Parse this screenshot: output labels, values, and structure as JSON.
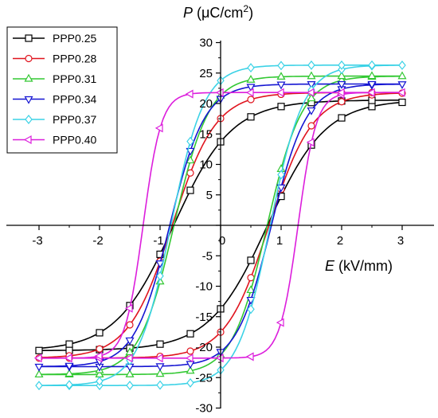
{
  "chart_data": {
    "type": "line",
    "xlabel": {
      "symbol": "E",
      "unit": " (kV/mm)"
    },
    "ylabel": {
      "symbol": "P",
      "unit": " (μC/cm",
      "sup": "2",
      "close": ")"
    },
    "xlim": [
      -3.7,
      3.6
    ],
    "ylim": [
      -30,
      30
    ],
    "xticks": [
      -3,
      -2,
      -1,
      0,
      1,
      2,
      3
    ],
    "yticks": [
      -30,
      -25,
      -20,
      -15,
      -10,
      -5,
      0,
      5,
      10,
      15,
      20,
      25,
      30
    ],
    "grid": false,
    "legend_position": "top-left",
    "series": [
      {
        "name": "PPP0.25",
        "color": "#000000",
        "marker": "square",
        "Ps": 20.3,
        "Ec": 0.78,
        "w": 0.95,
        "offset": 0.3,
        "marker_x": [
          -3,
          -2.5,
          -2,
          -1.5,
          -1,
          -0.5,
          0,
          0.5,
          1,
          1.5,
          2,
          2.5,
          3
        ]
      },
      {
        "name": "PPP0.28",
        "color": "#e0141e",
        "marker": "circle",
        "Ps": 21.8,
        "Ec": 0.8,
        "w": 0.72,
        "offset": 0,
        "marker_x": [
          -3,
          -2.5,
          -2,
          -1.5,
          -1,
          -0.5,
          0,
          0.5,
          1,
          1.5,
          2,
          2.5,
          3
        ]
      },
      {
        "name": "PPP0.31",
        "color": "#32c832",
        "marker": "triangle-up",
        "Ps": 24.5,
        "Ec": 0.77,
        "w": 0.58,
        "offset": 0,
        "marker_x": [
          -3,
          -2.5,
          -2,
          -1.5,
          -1,
          -0.5,
          0,
          0.5,
          1,
          1.5,
          2,
          2.5,
          3
        ]
      },
      {
        "name": "PPP0.34",
        "color": "#1414d2",
        "marker": "triangle-down",
        "Ps": 23.2,
        "Ec": 0.84,
        "w": 0.58,
        "offset": 0,
        "marker_x": [
          -3,
          -2.5,
          -2,
          -1.5,
          -1,
          -0.5,
          0,
          0.5,
          1,
          1.5,
          2,
          2.5,
          3
        ]
      },
      {
        "name": "PPP0.37",
        "color": "#3cd2e6",
        "marker": "diamond",
        "Ps": 26.3,
        "Ec": 0.82,
        "w": 0.55,
        "offset": 0,
        "marker_x": [
          -3,
          -2.5,
          -2,
          -1.5,
          -1,
          -0.5,
          0,
          0.5,
          1,
          1.5,
          2,
          2.5,
          3
        ]
      },
      {
        "name": "PPP0.40",
        "color": "#dc1edc",
        "marker": "triangle-left",
        "Ps": 21.8,
        "Ec": 1.28,
        "w": 0.3,
        "offset": 0,
        "marker_x": [
          -3,
          -2.5,
          -2,
          -1.5,
          -1,
          -0.5,
          0,
          0.5,
          1,
          1.5,
          2,
          2.5,
          3
        ]
      }
    ]
  }
}
